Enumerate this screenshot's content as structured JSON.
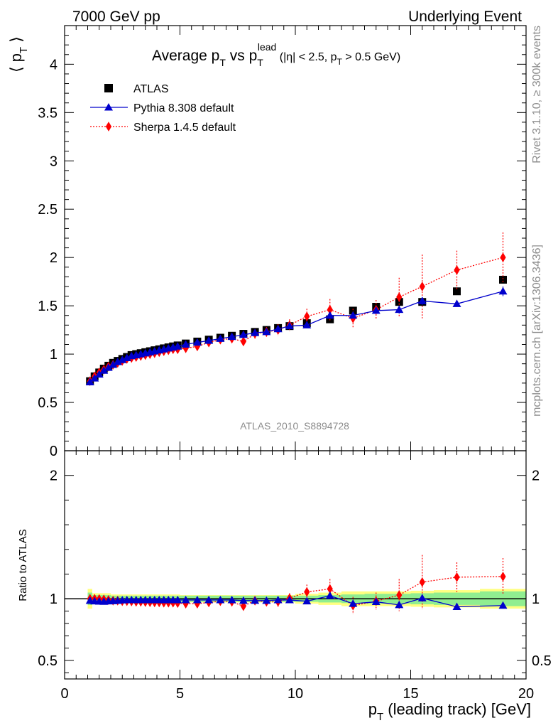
{
  "header": {
    "left": "7000 GeV pp",
    "right": "Underlying Event"
  },
  "side": {
    "rivet": "Rivet 3.1.10, ≥ 300k events",
    "mcplots": "mcplots.cern.ch [arXiv:1306.3436]"
  },
  "title": {
    "main": "Average p",
    "main_sub": "T",
    "vs": " vs p",
    "vs_sub": "T",
    "vs_sup": "lead",
    "cuts_a": " (|η| < 2.5, p",
    "cuts_sub": "T",
    "cuts_b": " > 0.5 GeV)"
  },
  "ylabel_top": {
    "open": "⟨ p",
    "sub": "T",
    "close": " ⟩"
  },
  "ylabel_bottom": "Ratio to ATLAS",
  "xlabel": {
    "main": "p",
    "sub": "T",
    "rest": " (leading track) [GeV]"
  },
  "analysis_tag": "ATLAS_2010_S8894728",
  "colors": {
    "atlas": "#000000",
    "pythia": "#0000cc",
    "sherpa": "#ff0000",
    "band_inner": "#90ee90",
    "band_outer": "#ffff80"
  },
  "chart_data": [
    {
      "type": "scatter",
      "panel": "main",
      "xlim": [
        0,
        20
      ],
      "ylim": [
        0,
        4.4
      ],
      "yticks": [
        "0",
        "0.5",
        "1",
        "1.5",
        "2",
        "2.5",
        "3",
        "3.5",
        "4"
      ],
      "ytick_values": [
        0,
        0.5,
        1,
        1.5,
        2,
        2.5,
        3,
        3.5,
        4
      ],
      "xticks": [
        "0",
        "5",
        "10",
        "15",
        "20"
      ],
      "xtick_values": [
        0,
        5,
        10,
        15,
        20
      ],
      "legend_placement": "top-left",
      "series": [
        {
          "name": "ATLAS",
          "marker": "square",
          "x": [
            1.1,
            1.3,
            1.5,
            1.7,
            1.9,
            2.1,
            2.3,
            2.5,
            2.7,
            2.9,
            3.1,
            3.3,
            3.5,
            3.7,
            3.9,
            4.1,
            4.3,
            4.5,
            4.7,
            4.9,
            5.25,
            5.75,
            6.25,
            6.75,
            7.25,
            7.75,
            8.25,
            8.75,
            9.25,
            9.75,
            10.5,
            11.5,
            12.5,
            13.5,
            14.5,
            15.5,
            17.0,
            19.0
          ],
          "y": [
            0.72,
            0.77,
            0.81,
            0.85,
            0.88,
            0.91,
            0.93,
            0.95,
            0.97,
            0.99,
            1.0,
            1.01,
            1.02,
            1.03,
            1.04,
            1.05,
            1.06,
            1.07,
            1.08,
            1.09,
            1.11,
            1.13,
            1.15,
            1.17,
            1.19,
            1.21,
            1.23,
            1.25,
            1.27,
            1.29,
            1.32,
            1.36,
            1.45,
            1.49,
            1.54,
            1.54,
            1.65,
            1.77
          ]
        },
        {
          "name": "Pythia 8.308 default",
          "marker": "triangle",
          "x": [
            1.1,
            1.3,
            1.5,
            1.7,
            1.9,
            2.1,
            2.3,
            2.5,
            2.7,
            2.9,
            3.1,
            3.3,
            3.5,
            3.7,
            3.9,
            4.1,
            4.3,
            4.5,
            4.7,
            4.9,
            5.25,
            5.75,
            6.25,
            6.75,
            7.25,
            7.75,
            8.25,
            8.75,
            9.25,
            9.75,
            10.5,
            11.5,
            12.5,
            13.5,
            14.5,
            15.5,
            17.0,
            19.0
          ],
          "y": [
            0.71,
            0.75,
            0.79,
            0.83,
            0.86,
            0.89,
            0.92,
            0.94,
            0.96,
            0.98,
            0.99,
            1.0,
            1.01,
            1.02,
            1.03,
            1.04,
            1.05,
            1.06,
            1.07,
            1.08,
            1.1,
            1.12,
            1.14,
            1.16,
            1.18,
            1.2,
            1.22,
            1.23,
            1.26,
            1.29,
            1.3,
            1.4,
            1.4,
            1.45,
            1.46,
            1.55,
            1.52,
            1.65
          ],
          "yerr": [
            0.01,
            0.01,
            0.01,
            0.01,
            0.01,
            0.01,
            0.01,
            0.01,
            0.01,
            0.01,
            0.01,
            0.01,
            0.01,
            0.01,
            0.01,
            0.01,
            0.01,
            0.01,
            0.01,
            0.01,
            0.01,
            0.01,
            0.01,
            0.01,
            0.01,
            0.01,
            0.01,
            0.01,
            0.01,
            0.01,
            0.02,
            0.02,
            0.03,
            0.03,
            0.04,
            0.04,
            0.03,
            0.05
          ]
        },
        {
          "name": "Sherpa 1.4.5 default",
          "marker": "diamond",
          "x": [
            1.1,
            1.3,
            1.5,
            1.7,
            1.9,
            2.1,
            2.3,
            2.5,
            2.7,
            2.9,
            3.1,
            3.3,
            3.5,
            3.7,
            3.9,
            4.1,
            4.3,
            4.5,
            4.7,
            4.9,
            5.25,
            5.75,
            6.25,
            6.75,
            7.25,
            7.75,
            8.25,
            8.75,
            9.25,
            9.75,
            10.5,
            11.5,
            12.5,
            13.5,
            14.5,
            15.5,
            17.0,
            19.0
          ],
          "y": [
            0.72,
            0.77,
            0.81,
            0.84,
            0.87,
            0.89,
            0.91,
            0.93,
            0.95,
            0.96,
            0.97,
            0.98,
            0.99,
            1.0,
            1.01,
            1.02,
            1.03,
            1.04,
            1.05,
            1.05,
            1.06,
            1.08,
            1.12,
            1.15,
            1.16,
            1.13,
            1.21,
            1.23,
            1.25,
            1.3,
            1.39,
            1.46,
            1.37,
            1.46,
            1.59,
            1.7,
            1.87,
            2.0
          ],
          "yerr": [
            0.01,
            0.01,
            0.01,
            0.01,
            0.01,
            0.01,
            0.01,
            0.01,
            0.01,
            0.01,
            0.01,
            0.01,
            0.01,
            0.01,
            0.01,
            0.01,
            0.01,
            0.01,
            0.01,
            0.01,
            0.02,
            0.02,
            0.03,
            0.03,
            0.04,
            0.04,
            0.05,
            0.05,
            0.06,
            0.06,
            0.08,
            0.11,
            0.1,
            0.1,
            0.2,
            0.33,
            0.2,
            0.26
          ]
        }
      ]
    },
    {
      "type": "scatter",
      "panel": "ratio",
      "ylabel": "Ratio to ATLAS",
      "xlim": [
        0,
        20
      ],
      "ylim": [
        0.35,
        2.2
      ],
      "yticks": [
        "0.5",
        "1",
        "2"
      ],
      "ytick_values": [
        0.5,
        1,
        2
      ],
      "xticks": [
        "0",
        "5",
        "10",
        "15",
        "20"
      ],
      "xtick_values": [
        0,
        5,
        10,
        15,
        20
      ],
      "bands": {
        "x_edges": [
          1.0,
          1.2,
          2.0,
          5.0,
          10.0,
          11.0,
          12.0,
          13.0,
          14.0,
          15.0,
          16.0,
          18.0,
          20.0
        ],
        "inner_halfwidth": [
          0.05,
          0.03,
          0.025,
          0.025,
          0.025,
          0.03,
          0.035,
          0.04,
          0.04,
          0.045,
          0.05,
          0.06
        ],
        "outer_halfwidth": [
          0.08,
          0.045,
          0.035,
          0.03,
          0.04,
          0.05,
          0.06,
          0.06,
          0.06,
          0.065,
          0.07,
          0.08
        ]
      },
      "series": [
        {
          "name": "Pythia 8.308 default",
          "x": [
            1.1,
            1.3,
            1.5,
            1.7,
            1.9,
            2.1,
            2.3,
            2.5,
            2.7,
            2.9,
            3.1,
            3.3,
            3.5,
            3.7,
            3.9,
            4.1,
            4.3,
            4.5,
            4.7,
            4.9,
            5.25,
            5.75,
            6.25,
            6.75,
            7.25,
            7.75,
            8.25,
            8.75,
            9.25,
            9.75,
            10.5,
            11.5,
            12.5,
            13.5,
            14.5,
            15.5,
            17.0,
            19.0
          ],
          "y": [
            0.985,
            0.98,
            0.978,
            0.977,
            0.98,
            0.982,
            0.985,
            0.988,
            0.99,
            0.99,
            0.99,
            0.99,
            0.99,
            0.99,
            0.99,
            0.99,
            0.99,
            0.99,
            0.99,
            0.99,
            0.99,
            0.99,
            0.99,
            0.99,
            0.99,
            0.985,
            0.985,
            0.985,
            0.99,
            0.99,
            0.98,
            1.025,
            0.96,
            0.975,
            0.95,
            1.005,
            0.935,
            0.945
          ],
          "yerr": [
            0.01,
            0.01,
            0.01,
            0.01,
            0.01,
            0.01,
            0.01,
            0.01,
            0.01,
            0.01,
            0.01,
            0.01,
            0.01,
            0.01,
            0.01,
            0.01,
            0.01,
            0.01,
            0.01,
            0.01,
            0.01,
            0.01,
            0.01,
            0.01,
            0.01,
            0.01,
            0.01,
            0.01,
            0.01,
            0.01,
            0.015,
            0.015,
            0.02,
            0.02,
            0.025,
            0.025,
            0.02,
            0.025
          ]
        },
        {
          "name": "Sherpa 1.4.5 default",
          "x": [
            1.1,
            1.3,
            1.5,
            1.7,
            1.9,
            2.1,
            2.3,
            2.5,
            2.7,
            2.9,
            3.1,
            3.3,
            3.5,
            3.7,
            3.9,
            4.1,
            4.3,
            4.5,
            4.7,
            4.9,
            5.25,
            5.75,
            6.25,
            6.75,
            7.25,
            7.75,
            8.25,
            8.75,
            9.25,
            9.75,
            10.5,
            11.5,
            12.5,
            13.5,
            14.5,
            15.5,
            17.0,
            19.0
          ],
          "y": [
            1.0,
            1.0,
            0.998,
            0.995,
            0.99,
            0.985,
            0.985,
            0.98,
            0.98,
            0.978,
            0.975,
            0.975,
            0.973,
            0.972,
            0.97,
            0.97,
            0.968,
            0.968,
            0.968,
            0.965,
            0.96,
            0.96,
            0.97,
            0.98,
            0.975,
            0.94,
            0.985,
            0.975,
            0.975,
            1.005,
            1.055,
            1.08,
            0.945,
            0.98,
            1.03,
            1.135,
            1.175,
            1.18
          ],
          "yerr": [
            0.01,
            0.01,
            0.01,
            0.01,
            0.01,
            0.01,
            0.01,
            0.01,
            0.01,
            0.01,
            0.01,
            0.01,
            0.01,
            0.01,
            0.01,
            0.01,
            0.01,
            0.01,
            0.01,
            0.01,
            0.015,
            0.015,
            0.02,
            0.02,
            0.025,
            0.03,
            0.035,
            0.035,
            0.04,
            0.04,
            0.06,
            0.08,
            0.07,
            0.07,
            0.13,
            0.22,
            0.12,
            0.15
          ]
        }
      ]
    }
  ]
}
